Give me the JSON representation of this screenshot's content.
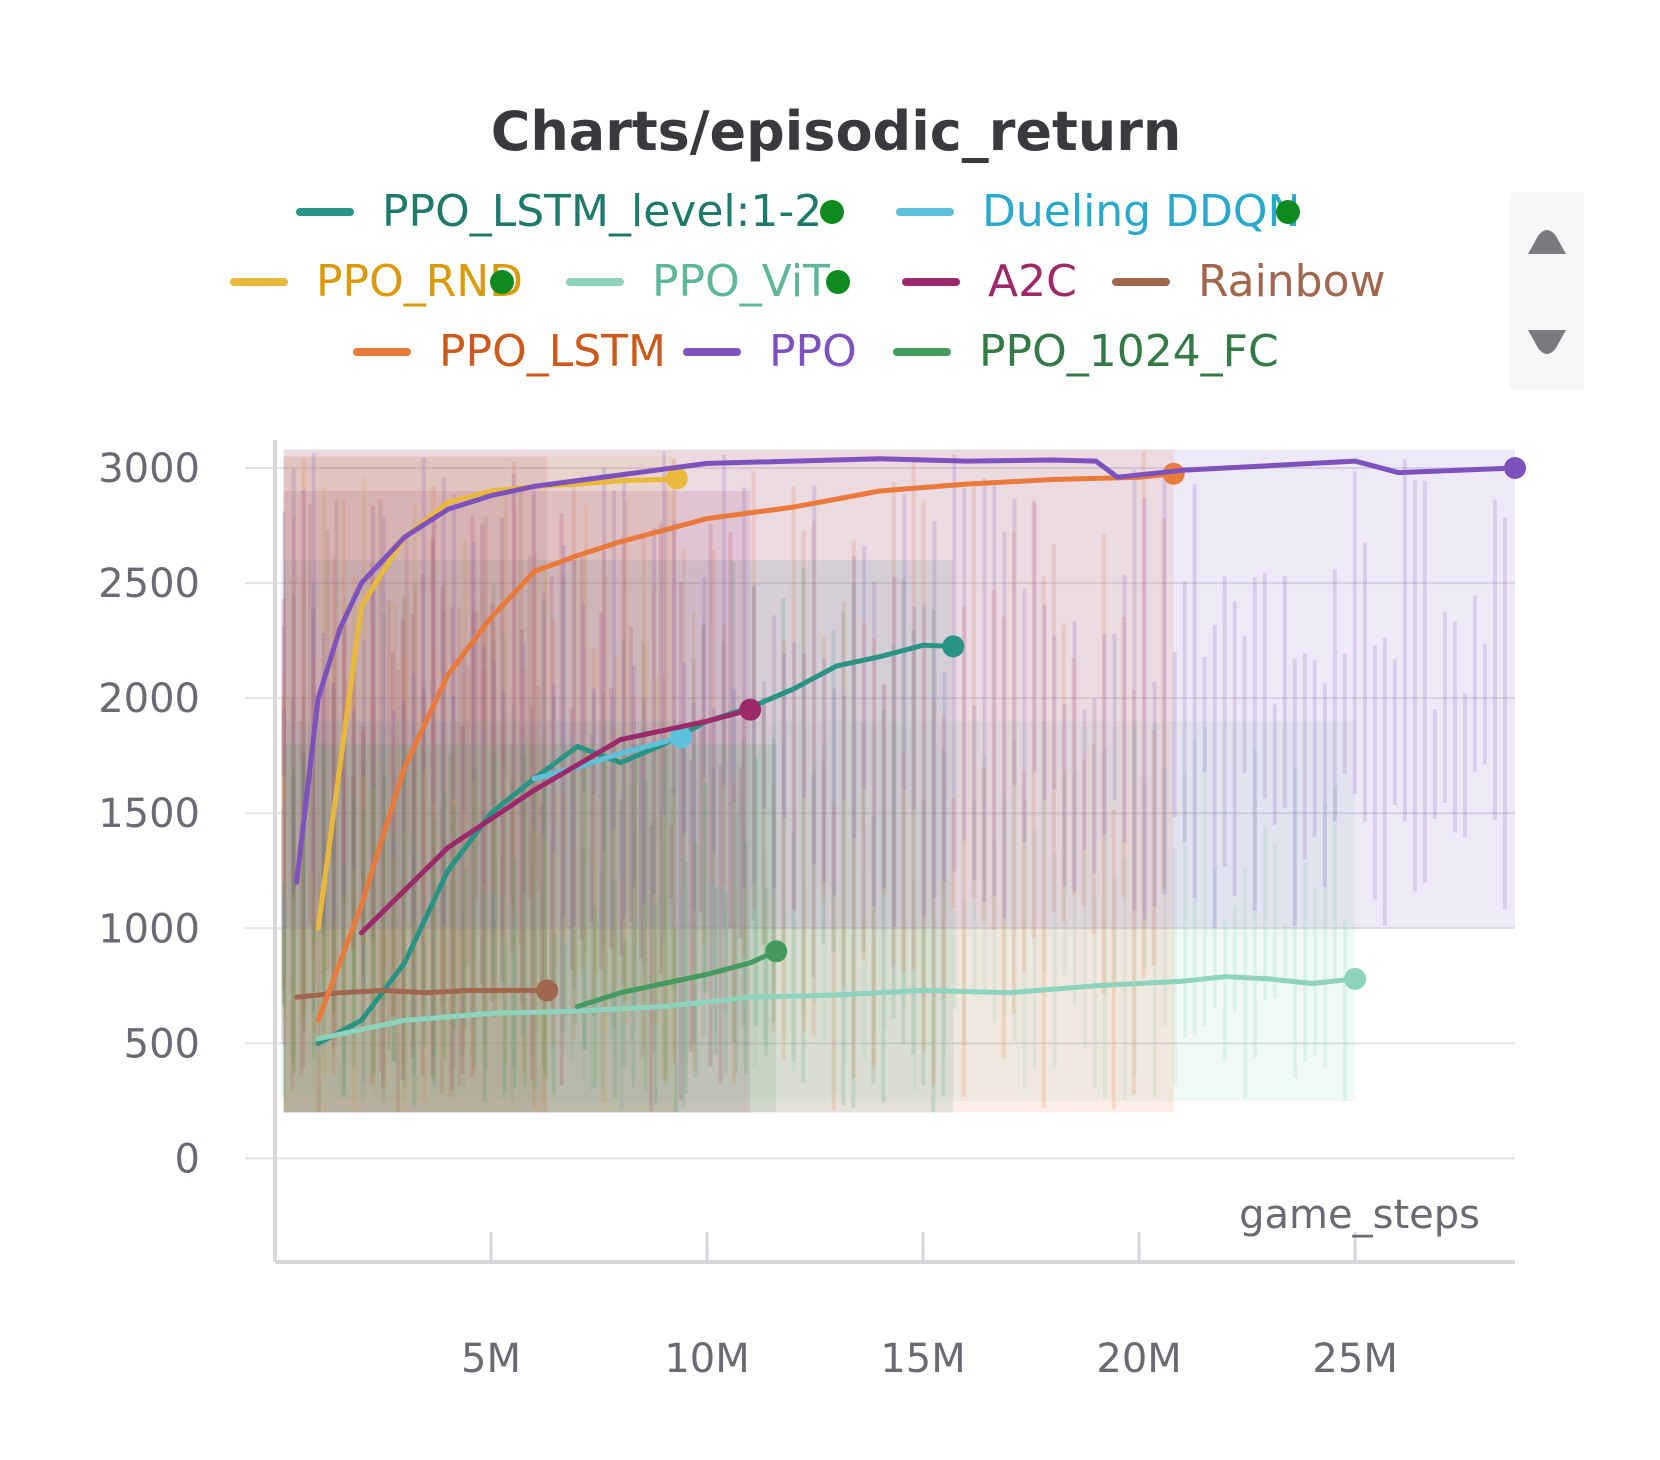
{
  "chart_data": {
    "type": "line",
    "title": "Charts/episodic_return",
    "xlabel": "game_steps",
    "ylabel": "",
    "xlim": [
      0,
      28700000
    ],
    "ylim": [
      -450,
      3100
    ],
    "x_ticks": [
      {
        "value": 5000000,
        "label": "5M"
      },
      {
        "value": 10000000,
        "label": "10M"
      },
      {
        "value": 15000000,
        "label": "15M"
      },
      {
        "value": 20000000,
        "label": "20M"
      },
      {
        "value": 25000000,
        "label": "25M"
      }
    ],
    "y_ticks": [
      {
        "value": 0,
        "label": "0"
      },
      {
        "value": 500,
        "label": "500"
      },
      {
        "value": 1000,
        "label": "1000"
      },
      {
        "value": 1500,
        "label": "1500"
      },
      {
        "value": 2000,
        "label": "2000"
      },
      {
        "value": 2500,
        "label": "2500"
      },
      {
        "value": 3000,
        "label": "3000"
      }
    ],
    "grid": true,
    "legend": "top-center",
    "series": [
      {
        "name": "PPO_LSTM_level:1-2",
        "color": "#2a9484",
        "label_color": "#1f7a6c",
        "status_dot": true,
        "band": [
          200,
          2600
        ],
        "x": [
          1000000,
          2000000,
          3000000,
          4000000,
          5000000,
          6000000,
          7000000,
          8000000,
          9000000,
          10000000,
          11000000,
          12000000,
          13000000,
          14000000,
          15000000,
          15700000
        ],
        "y": [
          500,
          600,
          850,
          1250,
          1500,
          1650,
          1790,
          1720,
          1800,
          1900,
          1960,
          2040,
          2140,
          2180,
          2230,
          2225
        ]
      },
      {
        "name": "Dueling DDQN",
        "color": "#5cc1d9",
        "label_color": "#29a8cc",
        "status_dot": true,
        "band": [
          200,
          1900
        ],
        "x": [
          6000000,
          7000000,
          8000000,
          9000000,
          9400000
        ],
        "y": [
          1650,
          1700,
          1760,
          1810,
          1830
        ]
      },
      {
        "name": "PPO_RND",
        "color": "#e8b93b",
        "label_color": "#d99a0b",
        "status_dot": true,
        "band": [
          200,
          3050
        ],
        "x": [
          1000000,
          2000000,
          3000000,
          4000000,
          5000000,
          6000000,
          7000000,
          8000000,
          9000000,
          9300000
        ],
        "y": [
          1000,
          2400,
          2700,
          2850,
          2900,
          2920,
          2930,
          2945,
          2950,
          2955
        ]
      },
      {
        "name": "PPO_ViT",
        "color": "#8dd3bd",
        "label_color": "#5fb69c",
        "status_dot": true,
        "band": [
          250,
          1900
        ],
        "x": [
          1000000,
          3000000,
          5000000,
          7000000,
          9000000,
          11000000,
          13000000,
          15000000,
          17000000,
          19000000,
          21000000,
          22000000,
          23000000,
          24000000,
          25000000
        ],
        "y": [
          520,
          600,
          630,
          640,
          660,
          700,
          710,
          730,
          720,
          750,
          770,
          790,
          780,
          760,
          780
        ]
      },
      {
        "name": "A2C",
        "color": "#9c2a6a",
        "label_color": "#9c2a6a",
        "status_dot": false,
        "band": [
          200,
          2900
        ],
        "x": [
          2000000,
          4000000,
          6000000,
          8000000,
          10000000,
          11000000
        ],
        "y": [
          980,
          1350,
          1600,
          1820,
          1900,
          1950
        ]
      },
      {
        "name": "Rainbow",
        "color": "#a0674e",
        "label_color": "#a0674e",
        "status_dot": false,
        "band": [
          200,
          3050
        ],
        "x": [
          500000,
          1500000,
          2500000,
          3500000,
          4500000,
          5500000,
          6300000
        ],
        "y": [
          700,
          720,
          730,
          720,
          730,
          730,
          730
        ]
      },
      {
        "name": "PPO_LSTM",
        "color": "#ea7a3c",
        "label_color": "#cc5a1e",
        "status_dot": false,
        "band": [
          200,
          3080
        ],
        "x": [
          1000000,
          2000000,
          3000000,
          4000000,
          5000000,
          6000000,
          7000000,
          8000000,
          9000000,
          10000000,
          12000000,
          14000000,
          16000000,
          18000000,
          20000000,
          20800000
        ],
        "y": [
          600,
          1100,
          1700,
          2100,
          2350,
          2550,
          2620,
          2680,
          2730,
          2780,
          2830,
          2900,
          2930,
          2950,
          2960,
          2975
        ]
      },
      {
        "name": "PPO",
        "color": "#7e52bd",
        "label_color": "#7e52bd",
        "status_dot": false,
        "band": [
          1000,
          3080
        ],
        "x": [
          500000,
          1000000,
          1500000,
          2000000,
          3000000,
          4000000,
          5000000,
          6000000,
          8000000,
          10000000,
          12000000,
          14000000,
          16000000,
          18000000,
          19000000,
          19500000,
          21000000,
          23000000,
          25000000,
          26000000,
          28700000
        ],
        "y": [
          1200,
          2000,
          2300,
          2500,
          2700,
          2820,
          2880,
          2920,
          2970,
          3020,
          3030,
          3040,
          3030,
          3035,
          3030,
          2960,
          2990,
          3010,
          3030,
          2980,
          3000
        ]
      },
      {
        "name": "PPO_1024_FC",
        "color": "#449a5f",
        "label_color": "#337a46",
        "status_dot": false,
        "band": [
          200,
          1800
        ],
        "x": [
          7000000,
          8000000,
          9000000,
          10000000,
          11000000,
          11600000
        ],
        "y": [
          660,
          720,
          760,
          800,
          850,
          900
        ]
      }
    ]
  },
  "legend_controls": {
    "up_icon": "triangle-up-icon",
    "down_icon": "triangle-down-icon",
    "status_dot_color": "#0f8a1f"
  }
}
